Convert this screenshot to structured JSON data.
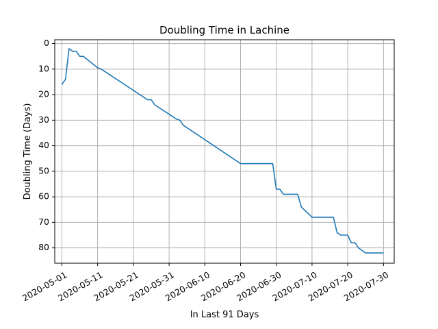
{
  "chart_data": {
    "type": "line",
    "title": "Doubling Time in  Lachine",
    "xlabel": "In Last 91 Days",
    "ylabel": "Doubling Time (Days)",
    "y_inverted": true,
    "grid": true,
    "line_color": "#1f77b4",
    "xlim": [
      "2020-04-29",
      "2020-08-02"
    ],
    "ylim": [
      86,
      -1.5
    ],
    "x_ticks": [
      "2020-05-01",
      "2020-05-11",
      "2020-05-21",
      "2020-05-31",
      "2020-06-10",
      "2020-06-20",
      "2020-06-30",
      "2020-07-10",
      "2020-07-20",
      "2020-07-30"
    ],
    "y_ticks": [
      0,
      10,
      20,
      30,
      40,
      50,
      60,
      70,
      80
    ],
    "series": [
      {
        "x": [
          "2020-05-01",
          "2020-05-02",
          "2020-05-03",
          "2020-05-04",
          "2020-05-05",
          "2020-05-06",
          "2020-05-07",
          "2020-05-11",
          "2020-05-12",
          "2020-05-25",
          "2020-05-26",
          "2020-05-27",
          "2020-06-02",
          "2020-06-03",
          "2020-06-04",
          "2020-06-20",
          "2020-06-29",
          "2020-06-30",
          "2020-07-01",
          "2020-07-02",
          "2020-07-06",
          "2020-07-07",
          "2020-07-10",
          "2020-07-16",
          "2020-07-17",
          "2020-07-18",
          "2020-07-20",
          "2020-07-21",
          "2020-07-22",
          "2020-07-23",
          "2020-07-25",
          "2020-07-30"
        ],
        "y": [
          16,
          14,
          2,
          3,
          3,
          5,
          5,
          9.5,
          10,
          22,
          22,
          24,
          29.5,
          30,
          32,
          47,
          47,
          57,
          57,
          59,
          59,
          64,
          68,
          68,
          74,
          75,
          75,
          78,
          78,
          80,
          82,
          82
        ]
      }
    ]
  }
}
